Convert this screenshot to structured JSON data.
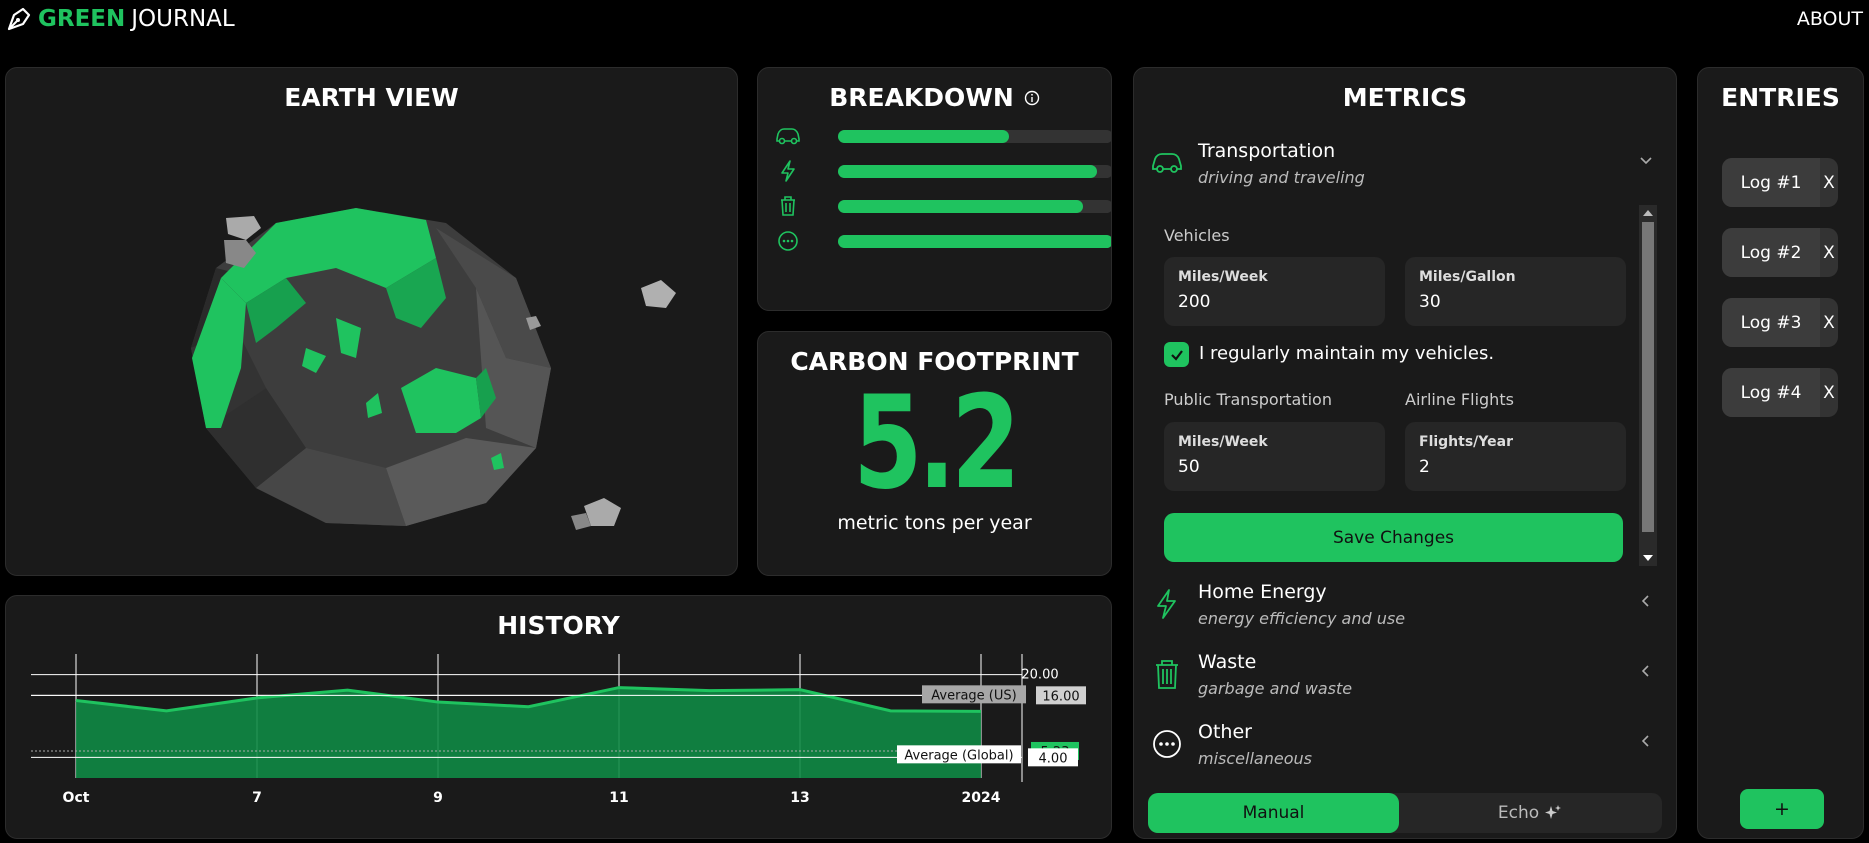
{
  "app": {
    "brand_green": "GREEN",
    "brand_white": "JOURNAL",
    "about": "ABOUT"
  },
  "earth": {
    "title": "EARTH VIEW"
  },
  "breakdown": {
    "title": "BREAKDOWN",
    "rows": [
      {
        "icon": "car-icon",
        "level": 0.62
      },
      {
        "icon": "lightning-icon",
        "level": 0.94
      },
      {
        "icon": "trash-icon",
        "level": 0.89
      },
      {
        "icon": "more-icon",
        "level": 1.0
      }
    ]
  },
  "carbon": {
    "title": "CARBON FOOTPRINT",
    "value": "5.2",
    "unit": "metric tons per year"
  },
  "history": {
    "title": "HISTORY"
  },
  "chart_data": {
    "type": "area",
    "title": "HISTORY",
    "x_ticks": [
      "Oct",
      "7",
      "9",
      "11",
      "13",
      "2024"
    ],
    "x_tick_positions": [
      0,
      2,
      4,
      6,
      8,
      10
    ],
    "x": [
      0,
      1,
      2,
      3,
      4,
      5,
      6,
      7,
      8,
      9,
      10
    ],
    "values": [
      15.0,
      13.0,
      15.5,
      17.0,
      14.7,
      13.8,
      17.5,
      16.9,
      17.1,
      13.0,
      12.9
    ],
    "y_ticks": [
      "20.00",
      "16.00"
    ],
    "ylim": [
      0,
      24
    ],
    "reference_lines": [
      {
        "name": "Average (US)",
        "value": 16.0,
        "label": "16.00"
      },
      {
        "name": "Average (Global)",
        "value": 4.0,
        "label": "4.00"
      }
    ],
    "current": {
      "value": 5.23,
      "label": "5.23"
    },
    "grid": true,
    "colors": {
      "line": "#1fc35f",
      "fill": "#0f8a45"
    }
  },
  "metrics": {
    "title": "METRICS",
    "transportation": {
      "title": "Transportation",
      "subtitle": "driving and traveling"
    },
    "vehicles_label": "Vehicles",
    "vehicles_miles": {
      "label": "Miles/Week",
      "value": "200"
    },
    "vehicles_mpg": {
      "label": "Miles/Gallon",
      "value": "30"
    },
    "maintain_label": "I regularly maintain my vehicles.",
    "public_label": "Public Transportation",
    "airline_label": "Airline Flights",
    "public_miles": {
      "label": "Miles/Week",
      "value": "50"
    },
    "flights": {
      "label": "Flights/Year",
      "value": "2"
    },
    "save": "Save Changes",
    "home": {
      "title": "Home Energy",
      "subtitle": "energy efficiency and use"
    },
    "waste": {
      "title": "Waste",
      "subtitle": "garbage and waste"
    },
    "other": {
      "title": "Other",
      "subtitle": "miscellaneous"
    },
    "mode_manual": "Manual",
    "mode_echo": "Echo"
  },
  "entries": {
    "title": "ENTRIES",
    "items": [
      {
        "label": "Log #1",
        "remove": "X"
      },
      {
        "label": "Log #2",
        "remove": "X"
      },
      {
        "label": "Log #3",
        "remove": "X"
      },
      {
        "label": "Log #4",
        "remove": "X"
      }
    ],
    "add": "+"
  },
  "colors": {
    "accent": "#1fc35f",
    "panel": "#1a1a1a",
    "background": "#000000"
  }
}
